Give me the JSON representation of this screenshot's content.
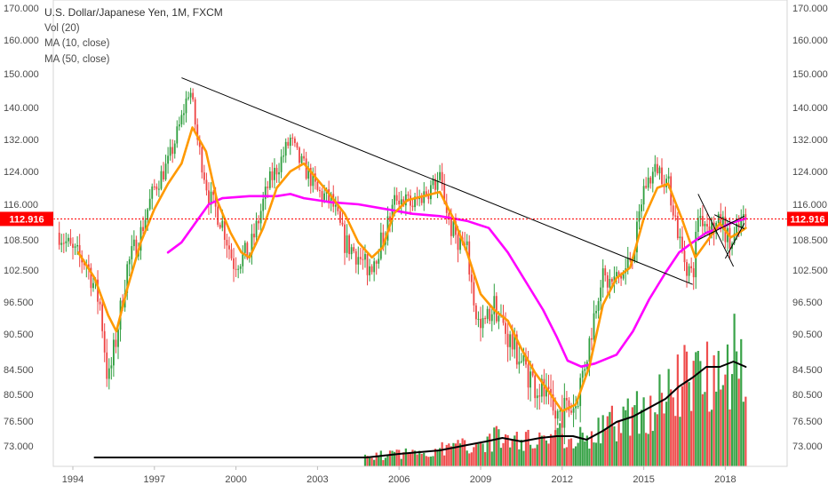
{
  "chart_data": {
    "type": "candlestick",
    "title": "U.S. Dollar/Japanese Yen, 1M, FXCM",
    "indicators": [
      "Vol (20)",
      "MA (10, close)",
      "MA (50, close)"
    ],
    "price_scale": {
      "ticks": [
        "170.000",
        "160.000",
        "150.000",
        "140.000",
        "132.000",
        "124.000",
        "116.000",
        "108.500",
        "102.500",
        "96.500",
        "90.500",
        "84.500",
        "80.500",
        "76.500",
        "73.000"
      ],
      "current_price": "112.916",
      "current_price_color": "#ff0000"
    },
    "time_axis": {
      "labels": [
        "1994",
        "1997",
        "2000",
        "2003",
        "2006",
        "2009",
        "2012",
        "2015",
        "2018"
      ]
    },
    "colors": {
      "up": "#2e9e3e",
      "down": "#ee4444",
      "ma10": "#ff9900",
      "ma50": "#ff00ff",
      "vol_ma": "#000000",
      "trendline": "#000000",
      "price_line": "#ff0000"
    },
    "price_path": [
      [
        1993.5,
        110
      ],
      [
        1994.0,
        106
      ],
      [
        1994.5,
        104
      ],
      [
        1995.0,
        96
      ],
      [
        1995.3,
        82
      ],
      [
        1995.6,
        90
      ],
      [
        1996.0,
        103
      ],
      [
        1996.5,
        110
      ],
      [
        1997.0,
        120
      ],
      [
        1997.5,
        126
      ],
      [
        1998.0,
        137
      ],
      [
        1998.3,
        146
      ],
      [
        1998.6,
        131
      ],
      [
        1999.0,
        118
      ],
      [
        1999.5,
        112
      ],
      [
        1999.9,
        104
      ],
      [
        2000.5,
        106
      ],
      [
        2000.8,
        112
      ],
      [
        2001.2,
        121
      ],
      [
        2001.6,
        126
      ],
      [
        2002.0,
        132
      ],
      [
        2002.3,
        127
      ],
      [
        2002.7,
        123
      ],
      [
        2003.0,
        119
      ],
      [
        2003.5,
        117
      ],
      [
        2004.0,
        108
      ],
      [
        2004.4,
        106
      ],
      [
        2004.8,
        103
      ],
      [
        2005.0,
        104
      ],
      [
        2005.5,
        110
      ],
      [
        2005.9,
        118
      ],
      [
        2006.5,
        116
      ],
      [
        2007.0,
        119
      ],
      [
        2007.5,
        122
      ],
      [
        2007.9,
        111
      ],
      [
        2008.5,
        106
      ],
      [
        2008.8,
        95
      ],
      [
        2009.0,
        91
      ],
      [
        2009.5,
        96
      ],
      [
        2010.0,
        90
      ],
      [
        2010.5,
        86
      ],
      [
        2011.0,
        82
      ],
      [
        2011.3,
        81
      ],
      [
        2011.7,
        77
      ],
      [
        2012.0,
        78
      ],
      [
        2012.5,
        79
      ],
      [
        2013.0,
        89
      ],
      [
        2013.4,
        101
      ],
      [
        2013.8,
        100
      ],
      [
        2014.3,
        102
      ],
      [
        2014.7,
        108
      ],
      [
        2015.0,
        120
      ],
      [
        2015.5,
        125
      ],
      [
        2015.9,
        121
      ],
      [
        2016.4,
        106
      ],
      [
        2016.8,
        101
      ],
      [
        2017.0,
        114
      ],
      [
        2017.5,
        111
      ],
      [
        2017.9,
        112
      ],
      [
        2018.2,
        107
      ],
      [
        2018.5,
        111
      ],
      [
        2018.75,
        113
      ]
    ],
    "ma10_path": [
      [
        1994.2,
        106
      ],
      [
        1994.8,
        101
      ],
      [
        1995.3,
        94
      ],
      [
        1995.6,
        91
      ],
      [
        1996.0,
        99
      ],
      [
        1996.5,
        108
      ],
      [
        1997.0,
        115
      ],
      [
        1997.5,
        121
      ],
      [
        1998.0,
        126
      ],
      [
        1998.4,
        135
      ],
      [
        1998.9,
        129
      ],
      [
        1999.3,
        117
      ],
      [
        1999.8,
        110
      ],
      [
        2000.2,
        106
      ],
      [
        2000.5,
        105
      ],
      [
        2001.0,
        111
      ],
      [
        2001.5,
        120
      ],
      [
        2002.0,
        124
      ],
      [
        2002.5,
        126
      ],
      [
        2003.0,
        122
      ],
      [
        2003.5,
        118
      ],
      [
        2004.0,
        114
      ],
      [
        2004.5,
        108
      ],
      [
        2005.0,
        105
      ],
      [
        2005.4,
        107
      ],
      [
        2005.8,
        114
      ],
      [
        2006.3,
        117
      ],
      [
        2006.9,
        118
      ],
      [
        2007.5,
        119
      ],
      [
        2008.0,
        113
      ],
      [
        2008.5,
        106
      ],
      [
        2009.0,
        98
      ],
      [
        2009.5,
        95
      ],
      [
        2010.0,
        93
      ],
      [
        2010.5,
        88
      ],
      [
        2011.0,
        84
      ],
      [
        2011.5,
        81
      ],
      [
        2012.0,
        78
      ],
      [
        2012.5,
        79
      ],
      [
        2013.0,
        85
      ],
      [
        2013.5,
        96
      ],
      [
        2014.0,
        101
      ],
      [
        2014.5,
        103
      ],
      [
        2015.0,
        113
      ],
      [
        2015.5,
        120
      ],
      [
        2015.9,
        121
      ],
      [
        2016.4,
        113
      ],
      [
        2016.9,
        105
      ],
      [
        2017.3,
        108
      ],
      [
        2017.8,
        112
      ],
      [
        2018.2,
        109
      ],
      [
        2018.5,
        110
      ],
      [
        2018.75,
        111
      ]
    ],
    "ma50_path": [
      [
        1997.5,
        106
      ],
      [
        1998.0,
        108
      ],
      [
        1998.5,
        112
      ],
      [
        1999.0,
        116
      ],
      [
        1999.5,
        117.5
      ],
      [
        2000.5,
        118
      ],
      [
        2001.5,
        118
      ],
      [
        2002.0,
        118.5
      ],
      [
        2002.5,
        117.5
      ],
      [
        2003.0,
        117
      ],
      [
        2003.5,
        116.5
      ],
      [
        2004.5,
        116
      ],
      [
        2005.5,
        115
      ],
      [
        2006.5,
        114
      ],
      [
        2007.5,
        113.5
      ],
      [
        2008.5,
        112.5
      ],
      [
        2009.3,
        111
      ],
      [
        2010.0,
        106
      ],
      [
        2010.7,
        100
      ],
      [
        2011.3,
        95
      ],
      [
        2011.8,
        90
      ],
      [
        2012.2,
        86
      ],
      [
        2012.7,
        85
      ],
      [
        2013.2,
        85.5
      ],
      [
        2014.0,
        87
      ],
      [
        2014.6,
        91
      ],
      [
        2015.2,
        97
      ],
      [
        2015.8,
        102
      ],
      [
        2016.3,
        106
      ],
      [
        2016.8,
        108
      ],
      [
        2017.3,
        110
      ],
      [
        2017.8,
        111
      ],
      [
        2018.2,
        112
      ],
      [
        2018.75,
        113
      ]
    ],
    "volume_ma_path": [
      [
        1994.8,
        0.05
      ],
      [
        2002.0,
        0.05
      ],
      [
        2004.8,
        0.05
      ],
      [
        2006.0,
        0.07
      ],
      [
        2007.5,
        0.09
      ],
      [
        2008.5,
        0.12
      ],
      [
        2009.2,
        0.14
      ],
      [
        2009.8,
        0.16
      ],
      [
        2010.5,
        0.14
      ],
      [
        2011.2,
        0.16
      ],
      [
        2011.8,
        0.17
      ],
      [
        2012.4,
        0.17
      ],
      [
        2012.9,
        0.15
      ],
      [
        2013.5,
        0.2
      ],
      [
        2014.0,
        0.25
      ],
      [
        2014.6,
        0.28
      ],
      [
        2015.2,
        0.33
      ],
      [
        2015.8,
        0.38
      ],
      [
        2016.3,
        0.45
      ],
      [
        2016.8,
        0.5
      ],
      [
        2017.3,
        0.56
      ],
      [
        2017.8,
        0.56
      ],
      [
        2018.3,
        0.59
      ],
      [
        2018.75,
        0.56
      ]
    ],
    "trendlines": [
      {
        "from": [
          1998.0,
          148.8
        ],
        "to": [
          2016.8,
          99.8
        ]
      },
      {
        "from": [
          2017.0,
          118.5
        ],
        "to": [
          2018.3,
          103.2
        ]
      },
      {
        "from": [
          2017.0,
          108.5
        ],
        "to": [
          2018.7,
          113.5
        ]
      },
      {
        "from": [
          2017.6,
          113.8
        ],
        "to": [
          2018.7,
          110.8
        ]
      },
      {
        "from": [
          2018.0,
          104.8
        ],
        "to": [
          2018.7,
          112.0
        ]
      }
    ]
  }
}
